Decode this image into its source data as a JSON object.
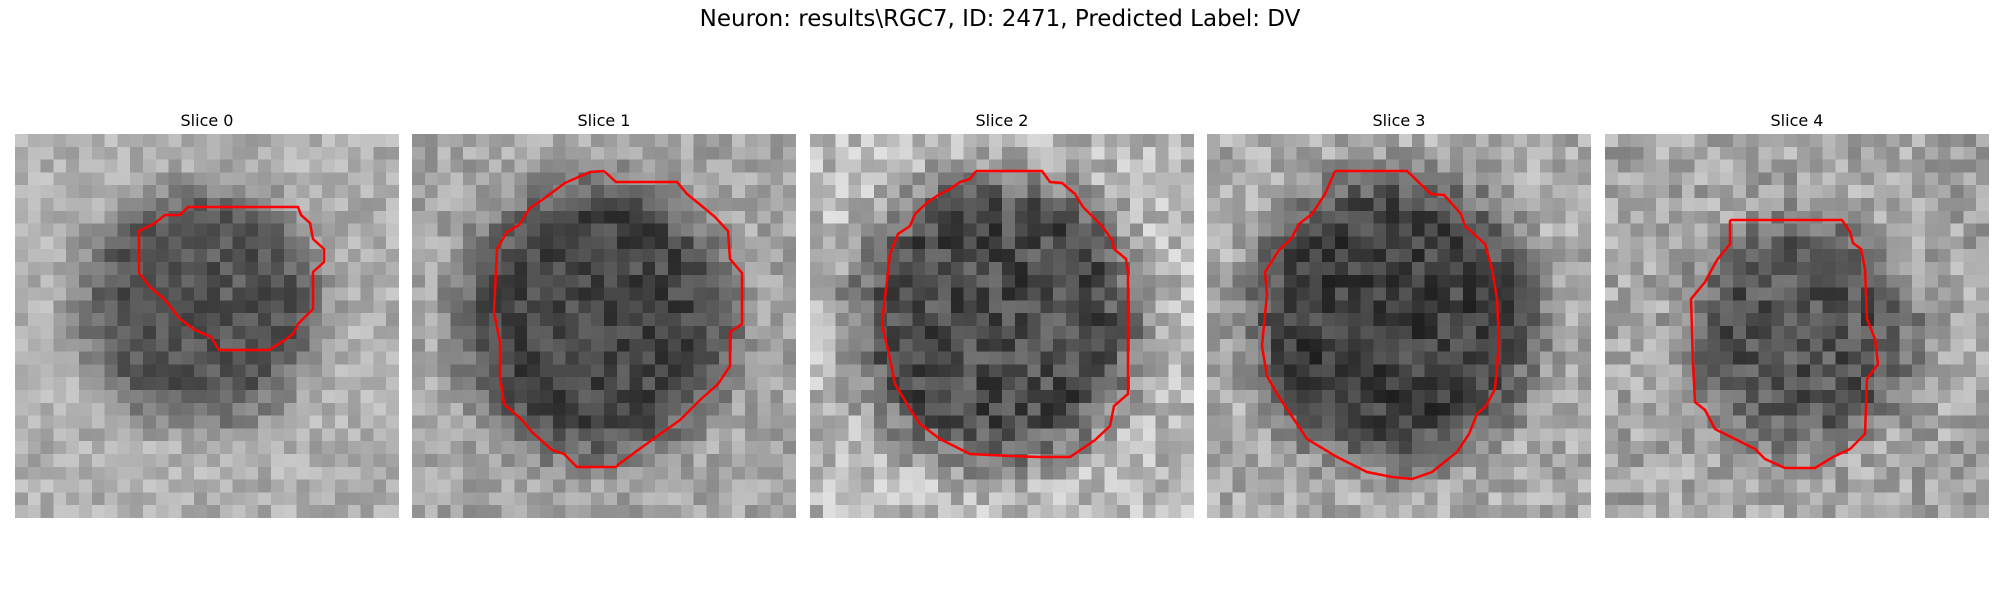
{
  "figure": {
    "title": "Neuron: results\\RGC7, ID: 2471, Predicted Label: DV"
  },
  "panels": [
    {
      "title": "Slice 0"
    },
    {
      "title": "Slice 1"
    },
    {
      "title": "Slice 2"
    },
    {
      "title": "Slice 3"
    },
    {
      "title": "Slice 4"
    }
  ],
  "colors": {
    "contour": "#ff0000",
    "colormap": "gray"
  }
}
